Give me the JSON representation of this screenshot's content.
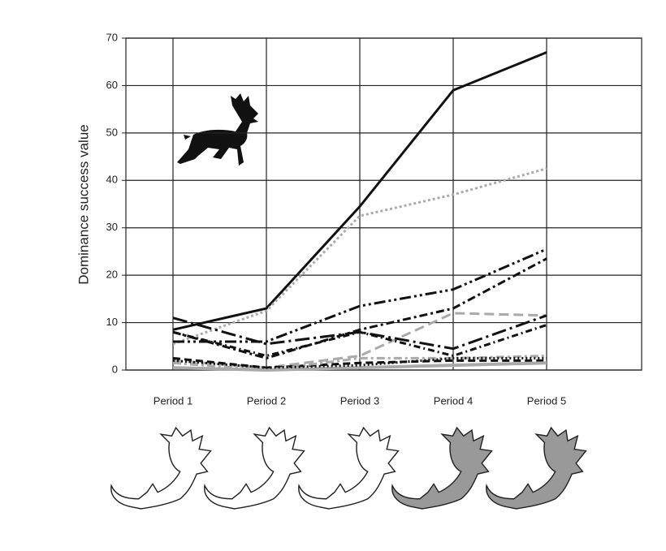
{
  "chart_data": {
    "type": "line",
    "y_label": "Dominance success value",
    "categories": [
      "Period 1",
      "Period 2",
      "Period 3",
      "Period 4",
      "Period 5"
    ],
    "ylim": [
      0,
      70
    ],
    "yticks": [
      0,
      10,
      20,
      30,
      40,
      50,
      60,
      70
    ],
    "grid": true,
    "series": [
      {
        "color": "#111111",
        "dash": "none",
        "width": 3,
        "values": [
          8.5,
          13,
          34.5,
          59,
          67
        ]
      },
      {
        "color": "#aaaaaa",
        "dash": "3 3",
        "width": 3,
        "values": [
          5.5,
          12.5,
          32.5,
          37,
          42.5
        ]
      },
      {
        "color": "#111111",
        "dash": "14 4 3 4 3 4",
        "width": 3,
        "values": [
          6,
          6,
          13.5,
          17,
          25.5
        ]
      },
      {
        "color": "#111111",
        "dash": "10 4 3 4",
        "width": 3,
        "values": [
          8,
          2.5,
          8.5,
          13,
          23.5
        ]
      },
      {
        "color": "#aaaaaa",
        "dash": "12 6",
        "width": 3,
        "values": [
          2,
          0.5,
          3,
          12,
          11.5
        ]
      },
      {
        "color": "#111111",
        "dash": "18 5 3 5",
        "width": 3,
        "values": [
          11,
          5.5,
          8,
          4.5,
          11.5
        ]
      },
      {
        "color": "#111111",
        "dash": "8 4 2 4",
        "width": 3,
        "values": [
          8,
          3,
          8,
          3,
          9.5
        ]
      },
      {
        "color": "#111111",
        "dash": "9 5",
        "width": 3,
        "values": [
          2.5,
          0.5,
          1.5,
          2,
          2
        ]
      },
      {
        "color": "#aaaaaa",
        "dash": "10 4 3 4",
        "width": 3,
        "values": [
          1.5,
          0,
          2.5,
          2.5,
          3
        ]
      },
      {
        "color": "#aaaaaa",
        "dash": "none",
        "width": 4,
        "values": [
          0.5,
          0,
          0.5,
          1,
          1.5
        ]
      },
      {
        "color": "#111111",
        "dash": "2 3",
        "width": 3,
        "values": [
          2,
          0.5,
          1,
          2.5,
          2.5
        ]
      }
    ]
  }
}
